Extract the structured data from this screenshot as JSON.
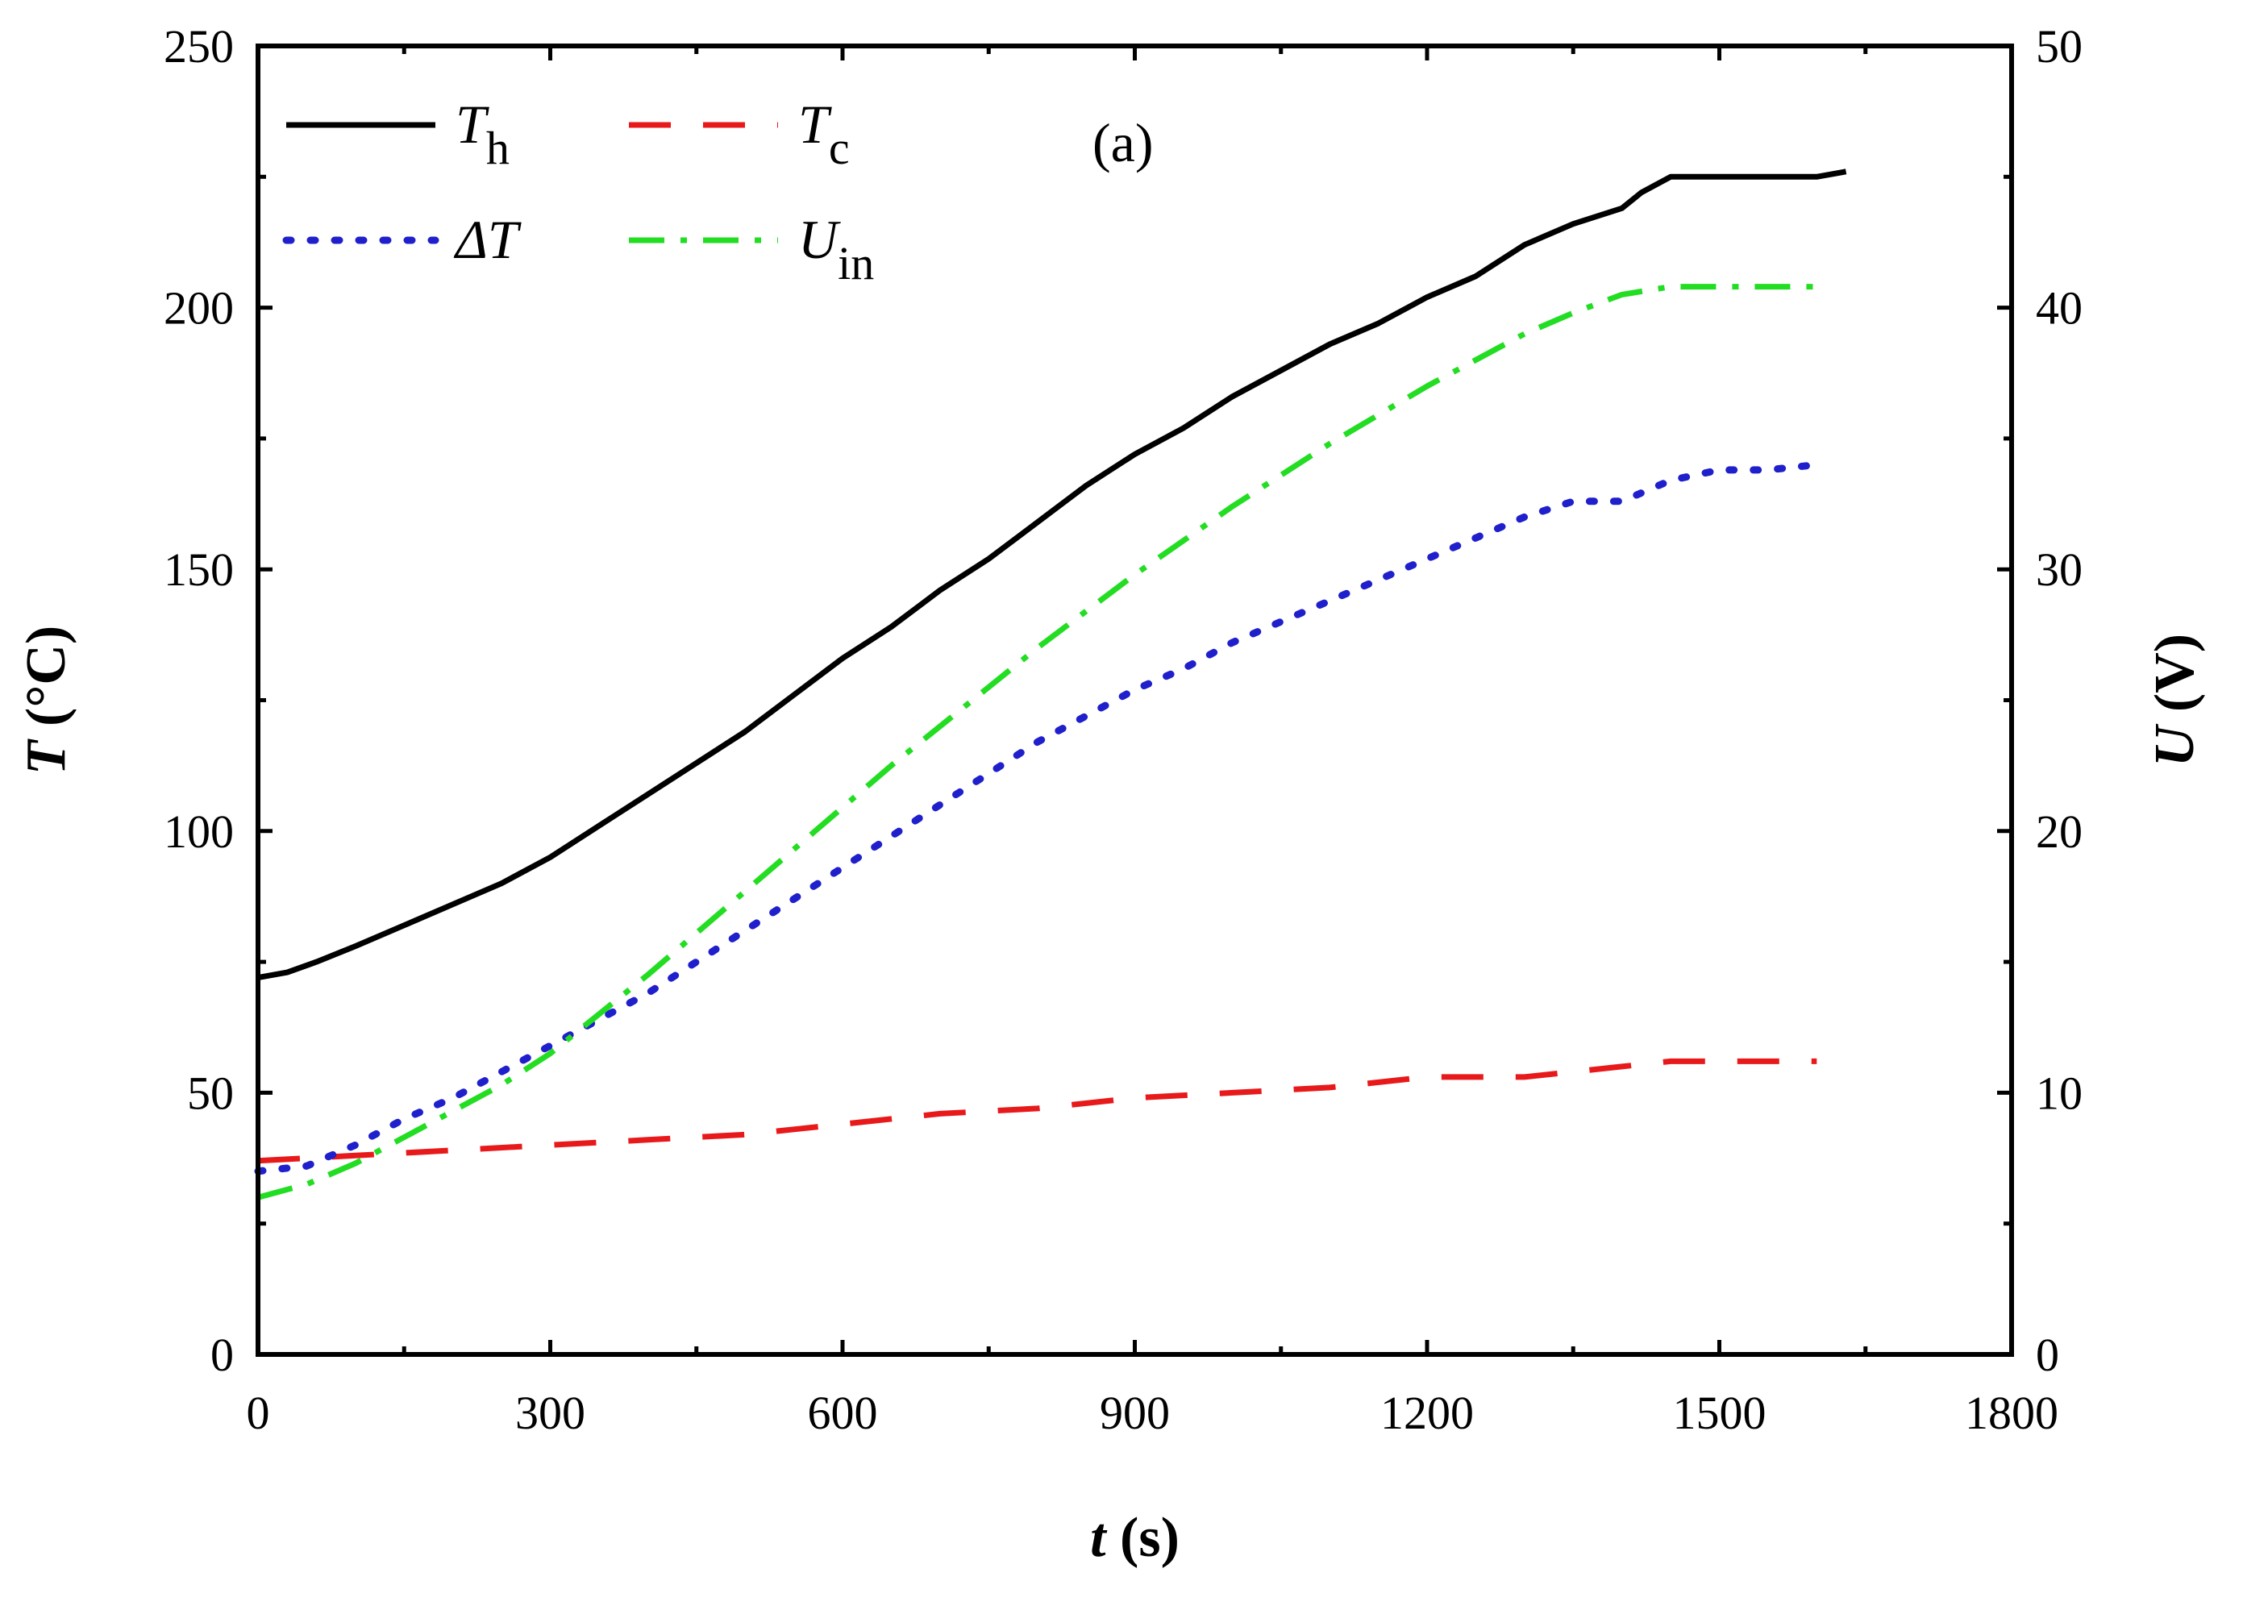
{
  "chart_data": {
    "type": "line",
    "title": "",
    "annotation": "(a)",
    "xlabel": {
      "var": "t",
      "unit": " (s)"
    },
    "ylabel_left": {
      "var": "T",
      "unit": " (°C)"
    },
    "ylabel_right": {
      "var": "U",
      "unit": " (V)"
    },
    "xlim": [
      0,
      1800
    ],
    "ylim_left": [
      0,
      250
    ],
    "ylim_right": [
      0,
      50
    ],
    "x_ticks": [
      0,
      300,
      600,
      900,
      1200,
      1500,
      1800
    ],
    "x_tick_labels": [
      "0",
      "300",
      "600",
      "900",
      "1200",
      "1500",
      "1800"
    ],
    "y_left_ticks": [
      0,
      50,
      100,
      150,
      200,
      250
    ],
    "y_left_tick_labels": [
      "0",
      "50",
      "100",
      "150",
      "200",
      "250"
    ],
    "y_right_ticks": [
      0,
      10,
      20,
      30,
      40,
      50
    ],
    "y_right_tick_labels": [
      "0",
      "10",
      "20",
      "30",
      "40",
      "50"
    ],
    "grid": false,
    "legend_position": "top-left",
    "series": [
      {
        "name": "T_h",
        "label_main": "T",
        "label_sub": "h",
        "axis": "left",
        "color": "#000000",
        "style": "solid",
        "x": [
          0,
          30,
          60,
          100,
          150,
          200,
          250,
          300,
          350,
          400,
          450,
          500,
          550,
          600,
          650,
          700,
          750,
          800,
          850,
          900,
          950,
          1000,
          1050,
          1100,
          1150,
          1200,
          1250,
          1300,
          1350,
          1400,
          1420,
          1450,
          1500,
          1550,
          1600,
          1630
        ],
        "y": [
          72,
          73,
          75,
          78,
          82,
          86,
          90,
          95,
          101,
          107,
          113,
          119,
          126,
          133,
          139,
          146,
          152,
          159,
          166,
          172,
          177,
          183,
          188,
          193,
          197,
          202,
          206,
          212,
          216,
          219,
          222,
          225,
          225,
          225,
          225,
          226
        ]
      },
      {
        "name": "T_c",
        "label_main": "T",
        "label_sub": "c",
        "axis": "left",
        "color": "#e8191a",
        "style": "dashed",
        "x": [
          0,
          100,
          200,
          300,
          400,
          500,
          550,
          600,
          650,
          700,
          800,
          900,
          1000,
          1100,
          1200,
          1300,
          1400,
          1450,
          1500,
          1600
        ],
        "y": [
          37,
          38,
          39,
          40,
          41,
          42,
          43,
          44,
          45,
          46,
          47,
          49,
          50,
          51,
          53,
          53,
          55,
          56,
          56,
          56
        ]
      },
      {
        "name": "dT",
        "label_main": "ΔT",
        "label_sub": "",
        "axis": "left",
        "color": "#1f1fcc",
        "style": "dotted",
        "x": [
          0,
          50,
          100,
          150,
          200,
          250,
          300,
          350,
          400,
          450,
          500,
          550,
          600,
          650,
          700,
          750,
          800,
          850,
          900,
          950,
          1000,
          1050,
          1100,
          1150,
          1200,
          1250,
          1300,
          1350,
          1400,
          1450,
          1500,
          1550,
          1600
        ],
        "y": [
          35,
          36,
          40,
          45,
          49,
          54,
          59,
          64,
          69,
          75,
          81,
          87,
          93,
          99,
          105,
          111,
          117,
          122,
          127,
          131,
          136,
          140,
          144,
          148,
          152,
          156,
          160,
          163,
          163,
          167,
          169,
          169,
          170
        ]
      },
      {
        "name": "U_in",
        "label_main": "U",
        "label_sub": "in",
        "axis": "right",
        "color": "#22dd22",
        "style": "dashdot",
        "x": [
          0,
          50,
          100,
          150,
          200,
          250,
          300,
          350,
          400,
          450,
          500,
          550,
          600,
          650,
          700,
          750,
          800,
          850,
          900,
          950,
          1000,
          1050,
          1100,
          1150,
          1200,
          1250,
          1300,
          1350,
          1400,
          1450,
          1500,
          1550,
          1600
        ],
        "y": [
          6,
          6.5,
          7.3,
          8.3,
          9.3,
          10.3,
          11.5,
          13,
          14.5,
          16.1,
          17.7,
          19.3,
          20.9,
          22.5,
          24,
          25.5,
          27,
          28.4,
          29.8,
          31.1,
          32.4,
          33.6,
          34.8,
          35.9,
          37,
          38,
          39,
          39.8,
          40.5,
          40.8,
          40.8,
          40.8,
          40.8
        ]
      }
    ]
  }
}
